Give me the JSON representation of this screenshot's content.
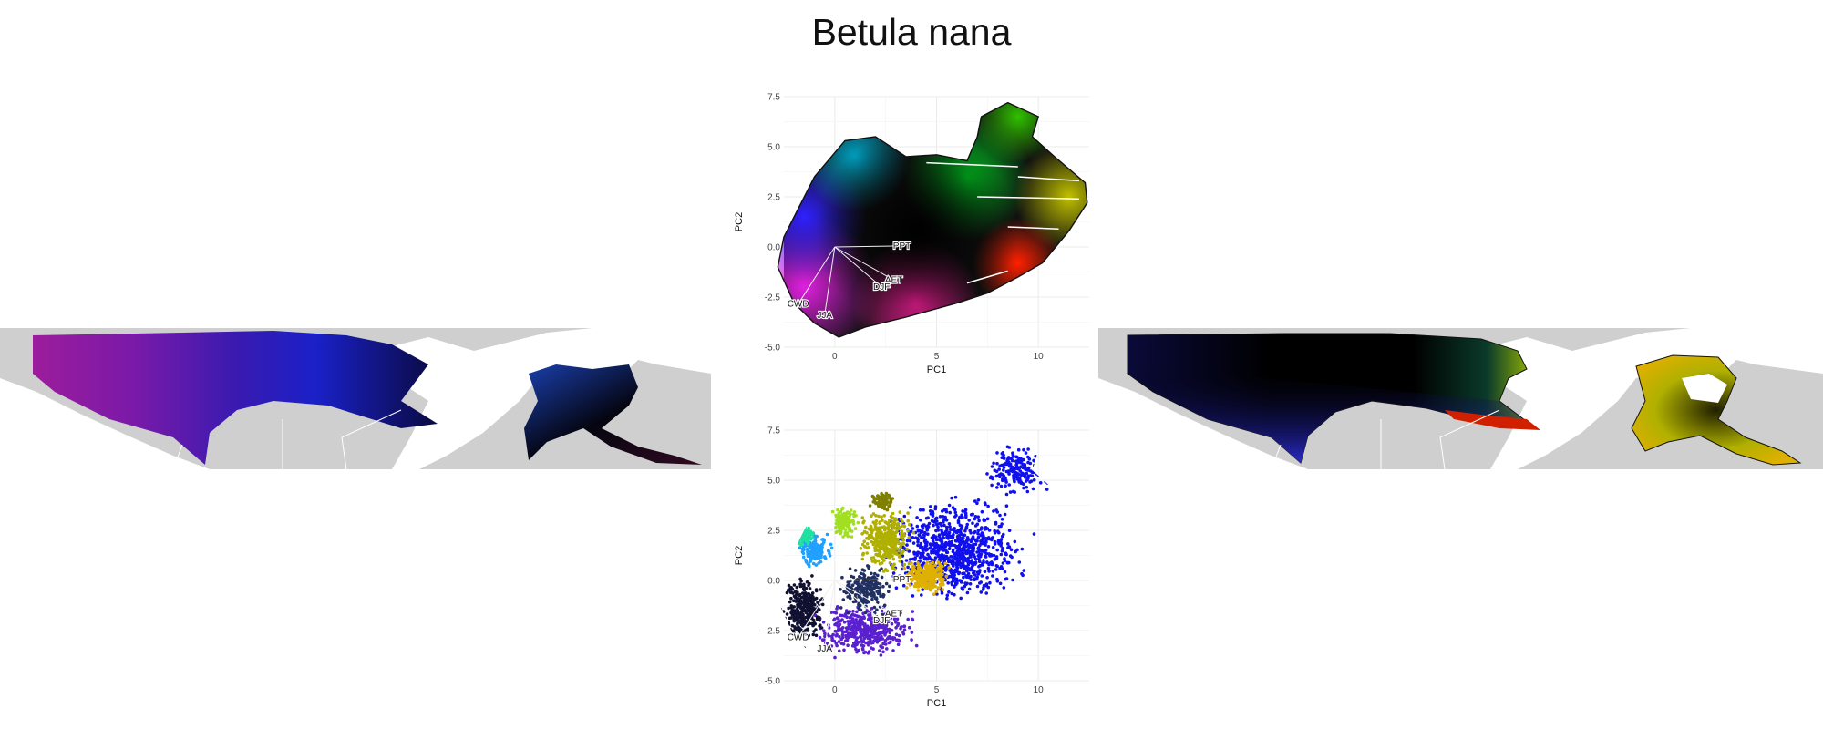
{
  "title": "Betula nana",
  "colors": {
    "map_land": "#cfcfcf",
    "map_border": "#ffffff",
    "grid": "#ebebeb",
    "outline": "#111111",
    "arrow": "#f0f0f0"
  },
  "chart_data": [
    {
      "type": "scatter",
      "panel": "top-center",
      "description_colors": "points colored by position in climate PCA space",
      "xlabel": "PC1",
      "ylabel": "PC2",
      "xlim": [
        -2.5,
        12.5
      ],
      "ylim": [
        -5,
        7.5
      ],
      "x_ticks": [
        0,
        5,
        10
      ],
      "y_ticks": [
        -5.0,
        -2.5,
        0.0,
        2.5,
        5.0,
        7.5
      ],
      "x_tick_labels": [
        "0",
        "5",
        "10"
      ],
      "y_tick_labels": [
        "-5.0",
        "-2.5",
        "0.0",
        "2.5",
        "5.0",
        "7.5"
      ],
      "grid": true,
      "vectors": [
        {
          "label": "PPT",
          "x": 3.3,
          "y": 0.05
        },
        {
          "label": "AET",
          "x": 2.9,
          "y": -1.65
        },
        {
          "label": "DJF",
          "x": 2.3,
          "y": -2.0
        },
        {
          "label": "CWD",
          "x": -1.8,
          "y": -2.85
        },
        {
          "label": "JJA",
          "x": -0.5,
          "y": -3.4
        }
      ]
    },
    {
      "type": "scatter",
      "panel": "bottom-center",
      "xlabel": "PC1",
      "ylabel": "PC2",
      "xlim": [
        -2.5,
        12.5
      ],
      "ylim": [
        -5,
        7.5
      ],
      "x_ticks": [
        0,
        5,
        10
      ],
      "y_ticks": [
        -5.0,
        -2.5,
        0.0,
        2.5,
        5.0,
        7.5
      ],
      "x_tick_labels": [
        "0",
        "5",
        "10"
      ],
      "y_tick_labels": [
        "-5.0",
        "-2.5",
        "0.0",
        "2.5",
        "5.0",
        "7.5"
      ],
      "grid": true,
      "vectors": [
        {
          "label": "PPT",
          "x": 3.3,
          "y": 0.05
        },
        {
          "label": "AET",
          "x": 2.9,
          "y": -1.65
        },
        {
          "label": "DJF",
          "x": 2.3,
          "y": -2.0
        },
        {
          "label": "CWD",
          "x": -1.8,
          "y": -2.85
        },
        {
          "label": "JJA",
          "x": -0.5,
          "y": -3.4
        }
      ]
    }
  ]
}
